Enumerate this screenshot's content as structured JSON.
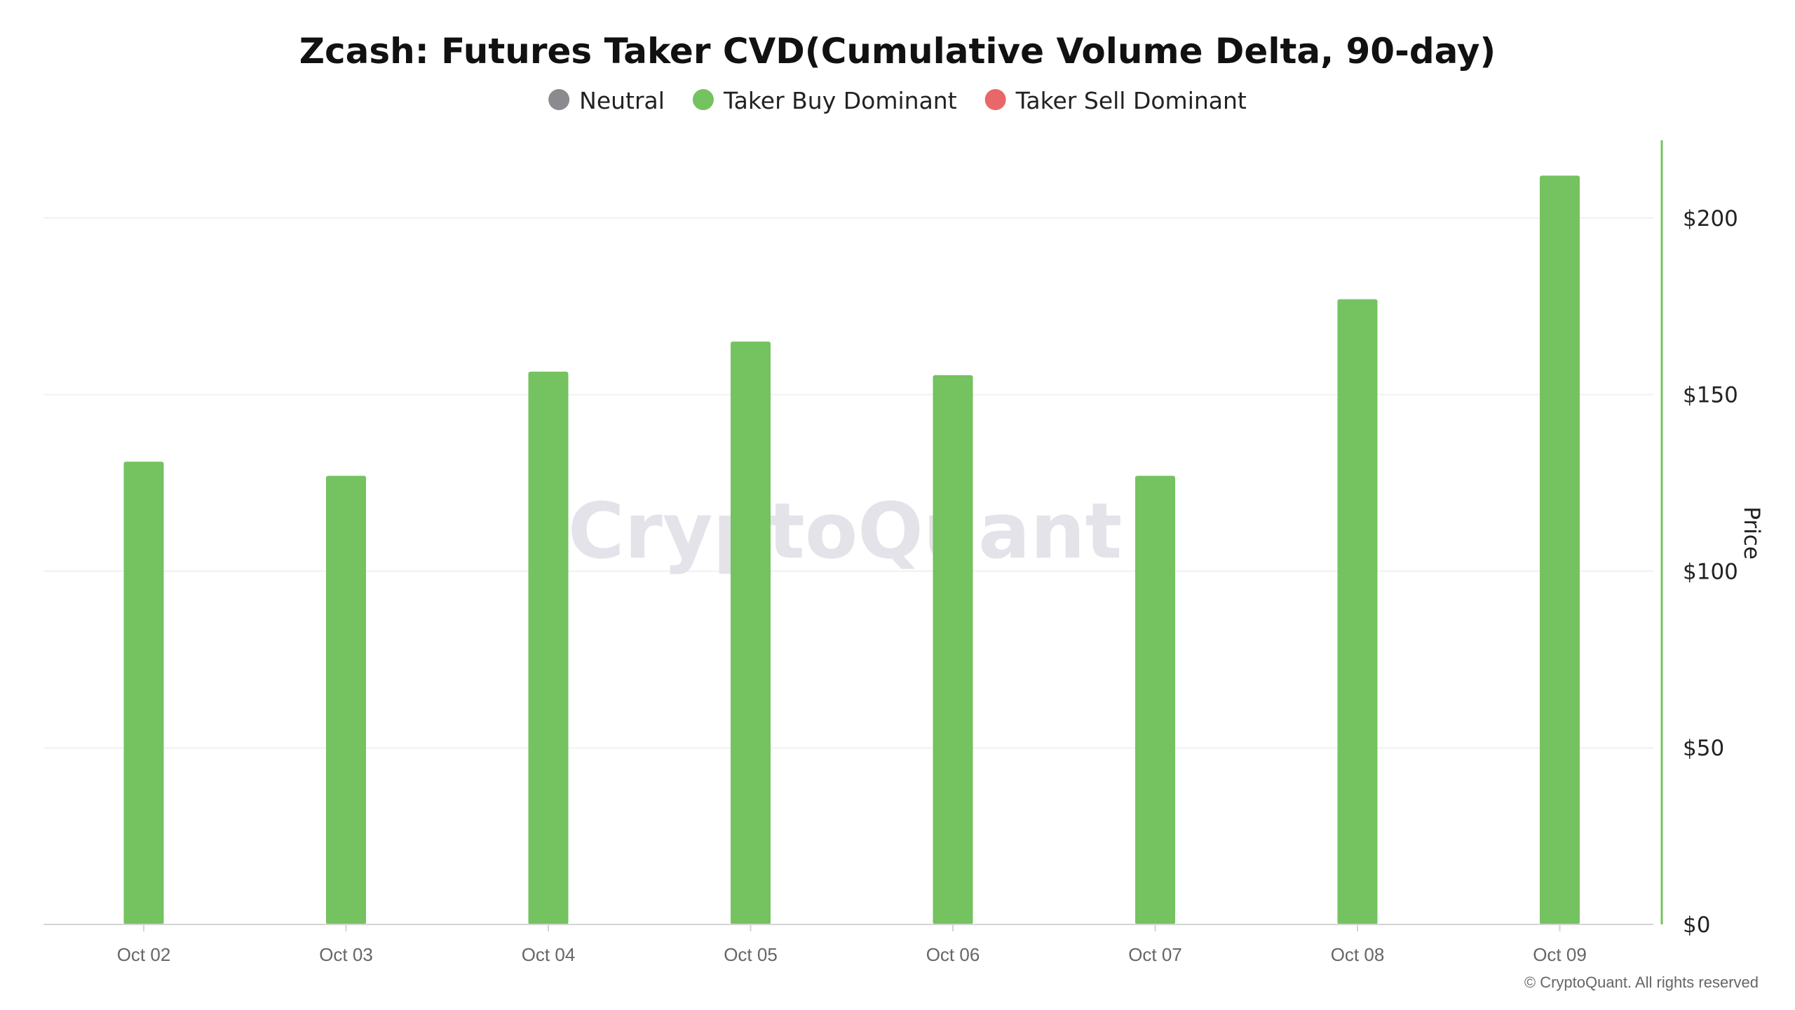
{
  "chart_data": {
    "type": "bar",
    "title": "Zcash: Futures Taker CVD(Cumulative Volume Delta, 90-day)",
    "legend": [
      {
        "label": "Neutral",
        "color": "#8a8a8f"
      },
      {
        "label": "Taker Buy Dominant",
        "color": "#75c260"
      },
      {
        "label": "Taker Sell Dominant",
        "color": "#e8686a"
      }
    ],
    "categories": [
      "Oct 02",
      "Oct 03",
      "Oct 04",
      "Oct 05",
      "Oct 06",
      "Oct 07",
      "Oct 08",
      "Oct 09"
    ],
    "series": [
      {
        "values": [
          131,
          127,
          156.5,
          165,
          155.5,
          127,
          177,
          212
        ],
        "color": "#75c260"
      }
    ],
    "y_axis": {
      "label": "Price",
      "position": "right",
      "ticks": [
        "$0",
        "$50",
        "$100",
        "$150",
        "$200"
      ],
      "tick_values": [
        0,
        50,
        100,
        150,
        200
      ],
      "ylim": [
        0,
        222
      ],
      "axis_color": "#75c260"
    },
    "grid": true,
    "legend_placement": "top-center"
  },
  "watermark": "CryptoQuant",
  "copyright": "© CryptoQuant. All rights reserved"
}
